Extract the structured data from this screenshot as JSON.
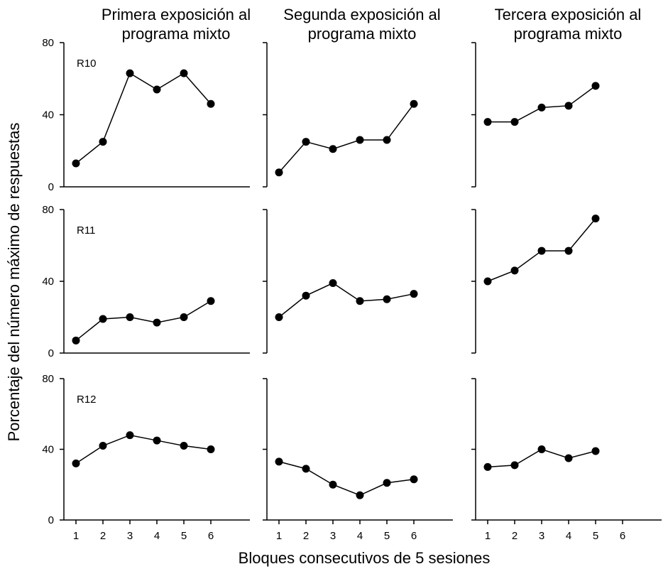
{
  "chart_data": {
    "type": "line",
    "ylabel": "Porcentaje del número máximo de respuestas",
    "xlabel": "Bloques consecutivos de 5 sesiones",
    "columns": [
      "Primera exposición al programa mixto",
      "Segunda exposición al programa mixto",
      "Tercera exposición al programa mixto"
    ],
    "column_titles": [
      [
        "Primera exposición al",
        "programa mixto"
      ],
      [
        "Segunda exposición al",
        "programa mixto"
      ],
      [
        "Tercera exposición al",
        "programa mixto"
      ]
    ],
    "rows": [
      "R10",
      "R11",
      "R12"
    ],
    "x_ticks": [
      "1",
      "2",
      "3",
      "4",
      "5",
      "6"
    ],
    "y_ticks": [
      "0",
      "40",
      "80"
    ],
    "xlim": [
      0.5,
      6.5
    ],
    "ylim": [
      0,
      80
    ],
    "grid": false,
    "panels": [
      {
        "row": "R10",
        "column": 1,
        "x": [
          1,
          2,
          3,
          4,
          5,
          6
        ],
        "y": [
          13,
          25,
          63,
          54,
          63,
          46
        ]
      },
      {
        "row": "R10",
        "column": 2,
        "x": [
          1,
          2,
          3,
          4,
          5,
          6
        ],
        "y": [
          8,
          25,
          21,
          26,
          26,
          46
        ]
      },
      {
        "row": "R10",
        "column": 3,
        "x": [
          1,
          2,
          3,
          4,
          5
        ],
        "y": [
          36,
          36,
          44,
          45,
          56
        ]
      },
      {
        "row": "R11",
        "column": 1,
        "x": [
          1,
          2,
          3,
          4,
          5,
          6
        ],
        "y": [
          7,
          19,
          20,
          17,
          20,
          29
        ]
      },
      {
        "row": "R11",
        "column": 2,
        "x": [
          1,
          2,
          3,
          4,
          5,
          6
        ],
        "y": [
          20,
          32,
          39,
          29,
          30,
          33
        ]
      },
      {
        "row": "R11",
        "column": 3,
        "x": [
          1,
          2,
          3,
          4,
          5
        ],
        "y": [
          40,
          46,
          57,
          57,
          75
        ]
      },
      {
        "row": "R12",
        "column": 1,
        "x": [
          1,
          2,
          3,
          4,
          5,
          6
        ],
        "y": [
          32,
          42,
          48,
          45,
          42,
          40
        ]
      },
      {
        "row": "R12",
        "column": 2,
        "x": [
          1,
          2,
          3,
          4,
          5,
          6
        ],
        "y": [
          33,
          29,
          20,
          14,
          21,
          23
        ]
      },
      {
        "row": "R12",
        "column": 3,
        "x": [
          1,
          2,
          3,
          4,
          5
        ],
        "y": [
          30,
          31,
          40,
          35,
          39
        ]
      }
    ]
  }
}
